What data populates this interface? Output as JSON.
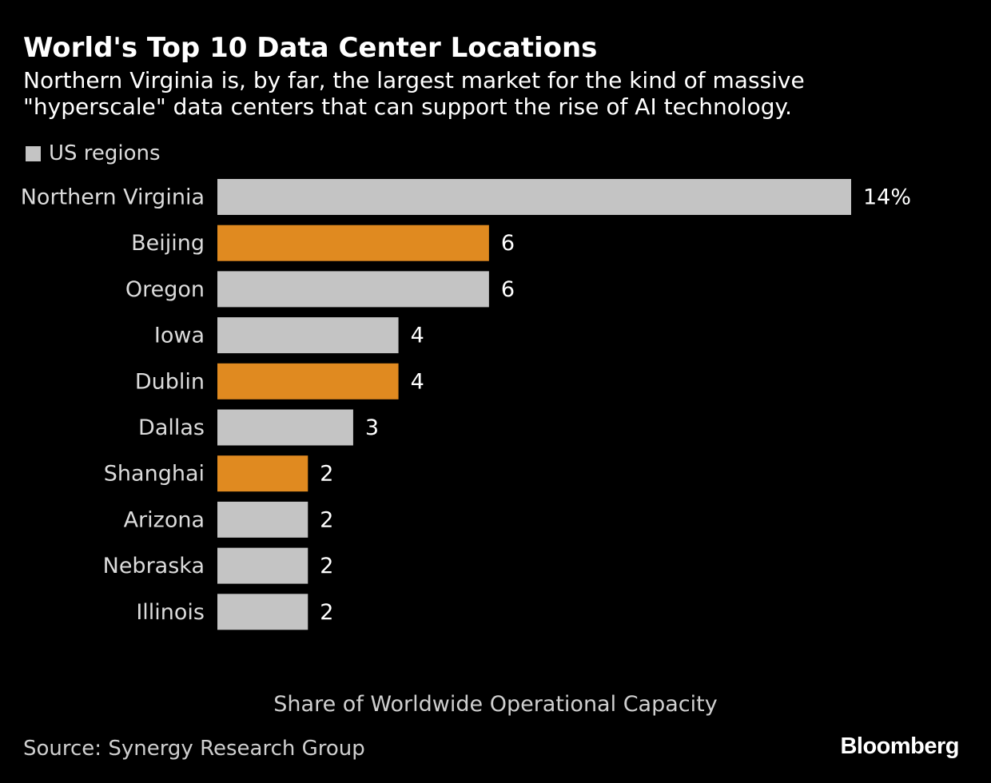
{
  "title": "World's Top 10 Data Center Locations",
  "subtitle": "Northern Virginia is, by far, the largest market for the kind of massive \"hyperscale\" data centers that can support the rise of AI technology.",
  "legend": {
    "label": "US regions",
    "color": "#c4c4c4"
  },
  "colors": {
    "us": "#c4c4c4",
    "non_us": "#e08a20",
    "background": "#000000"
  },
  "source": "Source: Synergy Research Group",
  "logo": "Bloomberg",
  "chart_data": {
    "type": "bar",
    "orientation": "horizontal",
    "title": "World's Top 10 Data Center Locations",
    "xlabel": "Share of Worldwide Operational Capacity",
    "ylabel": "",
    "unit": "%",
    "categories": [
      "Northern Virginia",
      "Beijing",
      "Oregon",
      "Iowa",
      "Dublin",
      "Dallas",
      "Shanghai",
      "Arizona",
      "Nebraska",
      "Illinois"
    ],
    "values": [
      14,
      6,
      6,
      4,
      4,
      3,
      2,
      2,
      2,
      2
    ],
    "value_labels": [
      "14%",
      "6",
      "6",
      "4",
      "4",
      "3",
      "2",
      "2",
      "2",
      "2"
    ],
    "us_region": [
      true,
      false,
      true,
      true,
      false,
      true,
      false,
      true,
      true,
      true
    ],
    "xlim": [
      0,
      14
    ],
    "grid": false,
    "legend": [
      "US regions"
    ]
  }
}
